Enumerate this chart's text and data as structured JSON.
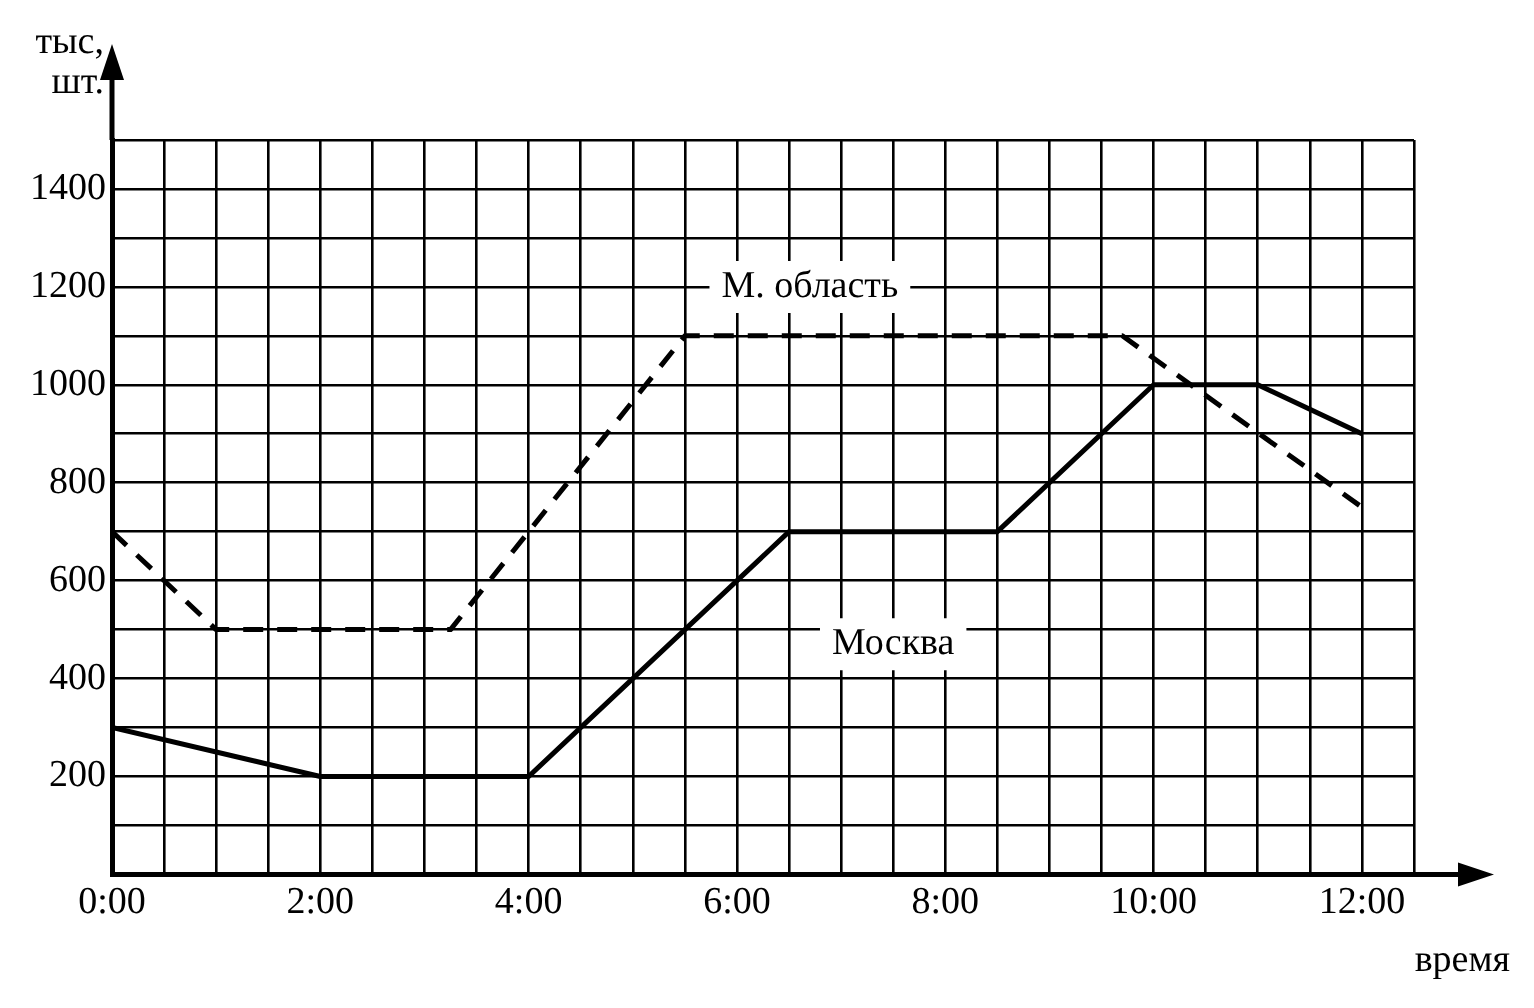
{
  "chart_data": {
    "type": "line",
    "xlabel": "время",
    "ylabel": "тыс, шт.",
    "series": [
      {
        "name": "Москва",
        "color": "#000000",
        "line_style": "solid",
        "x": [
          0,
          2,
          4,
          6.5,
          8.5,
          10,
          11,
          12
        ],
        "values": [
          300,
          200,
          200,
          700,
          700,
          1000,
          1000,
          900
        ]
      },
      {
        "name": "М. область",
        "color": "#000000",
        "line_style": "dashed",
        "x": [
          0,
          1,
          3.25,
          5.5,
          9.7,
          12
        ],
        "values": [
          700,
          500,
          500,
          1100,
          1100,
          750
        ]
      }
    ],
    "xlim": [
      0,
      12.5
    ],
    "ylim": [
      0,
      1500
    ],
    "xticks": [
      {
        "value": 0,
        "label": "0:00"
      },
      {
        "value": 0.5,
        "label": null
      },
      {
        "value": 1,
        "label": null
      },
      {
        "value": 1.5,
        "label": null
      },
      {
        "value": 2,
        "label": "2:00"
      },
      {
        "value": 2.5,
        "label": null
      },
      {
        "value": 3,
        "label": null
      },
      {
        "value": 3.5,
        "label": null
      },
      {
        "value": 4,
        "label": "4:00"
      },
      {
        "value": 4.5,
        "label": null
      },
      {
        "value": 5,
        "label": null
      },
      {
        "value": 5.5,
        "label": null
      },
      {
        "value": 6,
        "label": "6:00"
      },
      {
        "value": 6.5,
        "label": null
      },
      {
        "value": 7,
        "label": null
      },
      {
        "value": 7.5,
        "label": null
      },
      {
        "value": 8,
        "label": "8:00"
      },
      {
        "value": 8.5,
        "label": null
      },
      {
        "value": 9,
        "label": null
      },
      {
        "value": 9.5,
        "label": null
      },
      {
        "value": 10,
        "label": "10:00"
      },
      {
        "value": 10.5,
        "label": null
      },
      {
        "value": 11,
        "label": null
      },
      {
        "value": 11.5,
        "label": null
      },
      {
        "value": 12,
        "label": "12:00"
      },
      {
        "value": 12.5,
        "label": null
      }
    ],
    "yticks": [
      {
        "value": 100,
        "label": null
      },
      200,
      {
        "value": 300,
        "label": null
      },
      400,
      {
        "value": 500,
        "label": null
      },
      600,
      {
        "value": 700,
        "label": null
      },
      800,
      {
        "value": 900,
        "label": null
      },
      1000,
      {
        "value": 1100,
        "label": null
      },
      1200,
      {
        "value": 1300,
        "label": null
      },
      1400,
      {
        "value": 1500,
        "label": null
      }
    ],
    "grid": true,
    "legend": false,
    "marker": "none"
  }
}
